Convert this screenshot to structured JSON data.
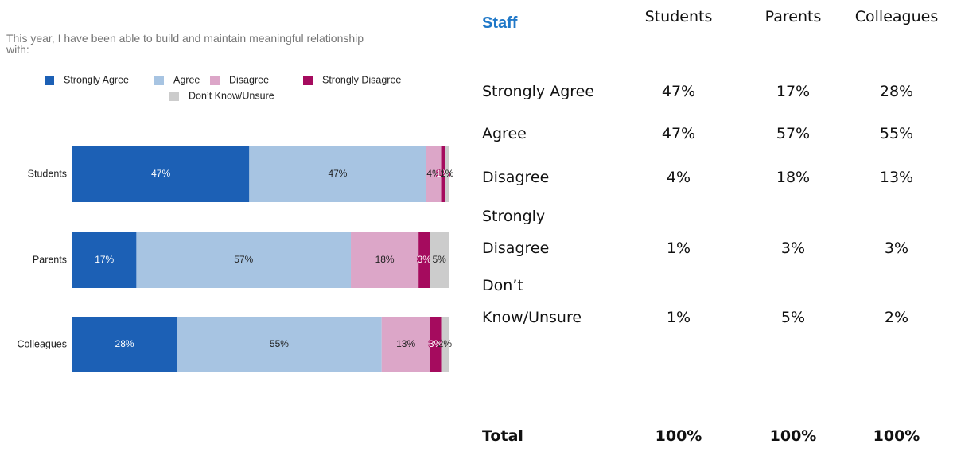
{
  "chart_data": {
    "type": "bar",
    "orientation": "horizontal",
    "stacked": "percent",
    "title": "This year, I have been able to build and maintain meaningful relationship with:",
    "categories": [
      "Students",
      "Parents",
      "Colleagues"
    ],
    "series": [
      {
        "name": "Strongly Agree",
        "color": "#1c60b5",
        "values": [
          47,
          17,
          28
        ],
        "value_labels": [
          "47%",
          "17%",
          "28%"
        ]
      },
      {
        "name": "Agree",
        "color": "#a7c4e2",
        "values": [
          47,
          57,
          55
        ],
        "value_labels": [
          "47%",
          "57%",
          "55%"
        ]
      },
      {
        "name": "Disagree",
        "color": "#dca6c8",
        "values": [
          4,
          18,
          13
        ],
        "value_labels": [
          "4%",
          "18%",
          "13%"
        ]
      },
      {
        "name": "Strongly Disagree",
        "color": "#a50b5e",
        "values": [
          1,
          3,
          3
        ],
        "value_labels": [
          "1%",
          "3%",
          "3%"
        ]
      },
      {
        "name": "Don’t Know/Unsure",
        "color": "#cccccc",
        "values": [
          1,
          5,
          2
        ],
        "value_labels": [
          "1%",
          "5%",
          "2%"
        ]
      }
    ]
  },
  "table": {
    "title": "Staff",
    "columns": [
      "Students",
      "Parents",
      "Colleagues"
    ],
    "rows": [
      {
        "label": "Strongly Agree",
        "cells": [
          "47%",
          "17%",
          "28%"
        ]
      },
      {
        "label": "Agree",
        "cells": [
          "47%",
          "57%",
          "55%"
        ]
      },
      {
        "label": "Disagree",
        "cells": [
          "4%",
          "18%",
          "13%"
        ]
      },
      {
        "label": "Strongly Disagree",
        "cells": [
          "1%",
          "3%",
          "3%"
        ]
      },
      {
        "label": "Don’t Know/Unsure",
        "cells": [
          "1%",
          "5%",
          "2%"
        ]
      }
    ],
    "total": {
      "label": "Total",
      "cells": [
        "100%",
        "100%",
        "100%"
      ]
    }
  }
}
